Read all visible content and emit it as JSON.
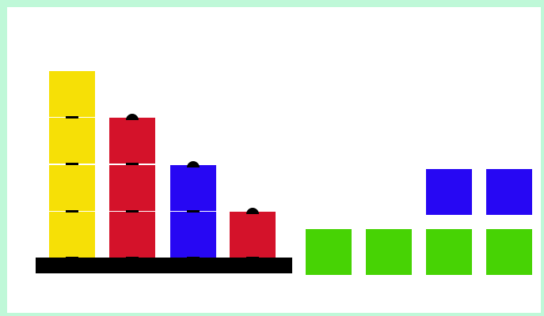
{
  "colors": {
    "yellow": "#f6e006",
    "red": "#d4122a",
    "blue": "#2707f3",
    "green": "#47d304",
    "base": "#000000",
    "border": "#bff8d8",
    "background": "#ffffff"
  },
  "board": {
    "base_platform": "black-base",
    "stacks": [
      {
        "name": "stack-1",
        "blocks": [
          "yellow",
          "yellow",
          "yellow",
          "yellow"
        ]
      },
      {
        "name": "stack-2",
        "blocks": [
          "red",
          "red",
          "red"
        ]
      },
      {
        "name": "stack-3",
        "blocks": [
          "blue",
          "blue"
        ]
      },
      {
        "name": "stack-4",
        "blocks": [
          "red"
        ]
      }
    ]
  },
  "tray": {
    "bottom_row": [
      "green",
      "green",
      "green",
      "green"
    ],
    "top_row": [
      "empty",
      "empty",
      "blue",
      "blue"
    ]
  }
}
